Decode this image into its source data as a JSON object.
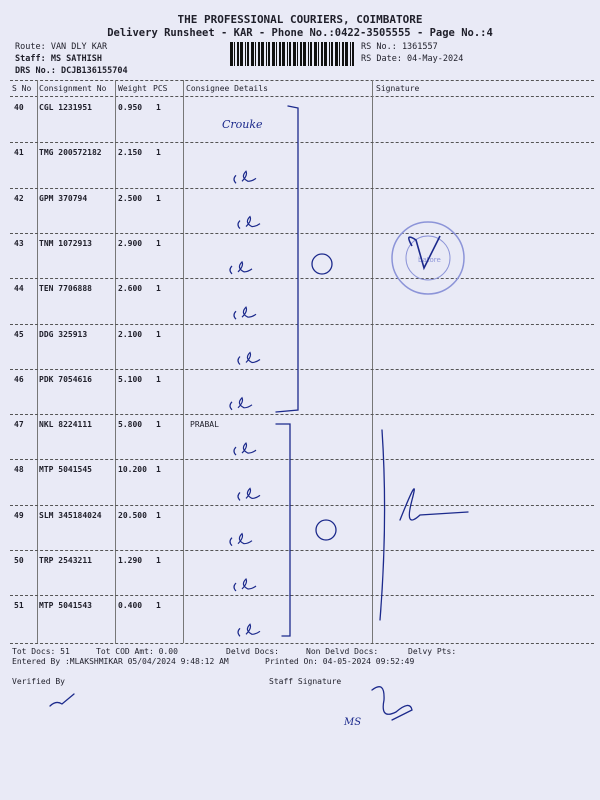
{
  "header": {
    "company": "THE PROFESSIONAL COURIERS, COIMBATORE",
    "subtitle": "Delivery Runsheet - KAR - Phone No.:0422-3505555 - Page No.:4",
    "route": "Route: VAN DLY KAR",
    "staff": "Staff: MS SATHISH",
    "drs_no": "DRS No.: DCJB136155704",
    "rs_no": "RS No.: 1361557",
    "rs_date": "RS Date: 04-May-2024"
  },
  "table": {
    "columns": [
      "S No",
      "Consignment No",
      "Weight",
      "PCS",
      "Consignee Details",
      "Signature"
    ],
    "rows": [
      {
        "sno": "40",
        "consignment": "CGL 1231951",
        "weight": "0.950",
        "pcs": "1",
        "consignee": ""
      },
      {
        "sno": "41",
        "consignment": "TMG 200572182",
        "weight": "2.150",
        "pcs": "1",
        "consignee": ""
      },
      {
        "sno": "42",
        "consignment": "GPM 370794",
        "weight": "2.500",
        "pcs": "1",
        "consignee": ""
      },
      {
        "sno": "43",
        "consignment": "TNM 1072913",
        "weight": "2.900",
        "pcs": "1",
        "consignee": ""
      },
      {
        "sno": "44",
        "consignment": "TEN 7706888",
        "weight": "2.600",
        "pcs": "1",
        "consignee": ""
      },
      {
        "sno": "45",
        "consignment": "DDG 325913",
        "weight": "2.100",
        "pcs": "1",
        "consignee": ""
      },
      {
        "sno": "46",
        "consignment": "PDK 7054616",
        "weight": "5.100",
        "pcs": "1",
        "consignee": ""
      },
      {
        "sno": "47",
        "consignment": "NKL 8224111",
        "weight": "5.800",
        "pcs": "1",
        "consignee": "PRABAL"
      },
      {
        "sno": "48",
        "consignment": "MTP 5041545",
        "weight": "10.200",
        "pcs": "1",
        "consignee": ""
      },
      {
        "sno": "49",
        "consignment": "SLM 345184024",
        "weight": "20.500",
        "pcs": "1",
        "consignee": ""
      },
      {
        "sno": "50",
        "consignment": "TRP 2543211",
        "weight": "1.290",
        "pcs": "1",
        "consignee": ""
      },
      {
        "sno": "51",
        "consignment": "MTP 5041543",
        "weight": "0.400",
        "pcs": "1",
        "consignee": ""
      }
    ]
  },
  "footer": {
    "tot_docs": "Tot Docs:  51",
    "tot_cod": "Tot COD Amt:     0.00",
    "delvd_docs": "Delvd Docs:",
    "non_delvd_docs": "Non Delvd Docs:",
    "delvy_pts": "Delvy Pts:",
    "entered_by": "Entered By :MLAKSHMIKAR 05/04/2024 9:48:12 AM",
    "printed_on": "Printed On: 04-05-2024 09:52:49",
    "verified_by": "Verified By",
    "staff_signature": "Staff Signature"
  },
  "handwriting": {
    "row40_note": "Crouke",
    "staff_sign": "MS"
  },
  "stamp_text": "WORLDWIDE PRIVATE LIMITED Coimbatore 659",
  "colors": {
    "paper": "#e9eaf6",
    "ink": "#1c2a8c",
    "stamp": "#8c94d8"
  }
}
